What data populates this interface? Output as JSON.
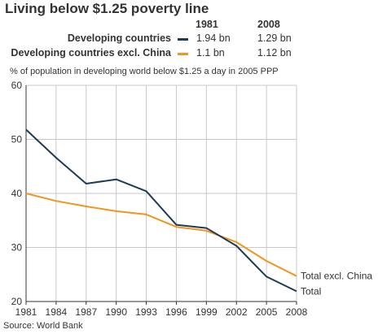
{
  "chart_data": {
    "type": "line",
    "title": "Living below $1.25 poverty line",
    "subtitle": "% of population in developing world below $1.25 a day in 2005 PPP",
    "source": "Source: World Bank",
    "x": [
      1981,
      1984,
      1987,
      1990,
      1993,
      1996,
      1999,
      2002,
      2005,
      2008
    ],
    "x_tick_labels": [
      "1981",
      "1984",
      "1987",
      "1990",
      "1993",
      "1996",
      "1999",
      "2002",
      "2005",
      "2008"
    ],
    "y_ticks": [
      20,
      30,
      40,
      50,
      60
    ],
    "y_tick_labels": [
      "20",
      "30",
      "40",
      "50",
      "60"
    ],
    "ylim": [
      20,
      60
    ],
    "xlim": [
      1981,
      2008
    ],
    "grid": true,
    "series": [
      {
        "name": "Total",
        "legend_name": "Developing countries",
        "color": "#1f3b55",
        "values": [
          51.8,
          46.6,
          41.8,
          42.6,
          40.4,
          34.2,
          33.6,
          30.3,
          24.6,
          21.9
        ],
        "value_1981": "1.94 bn",
        "value_2008": "1.29 bn"
      },
      {
        "name": "Total excl. China",
        "legend_name": "Developing countries excl. China",
        "color": "#f0961e",
        "values": [
          40.0,
          38.6,
          37.6,
          36.7,
          36.1,
          33.8,
          33.1,
          31.0,
          27.5,
          24.7
        ],
        "value_1981": "1.1 bn",
        "value_2008": "1.12 bn"
      }
    ],
    "legend": {
      "col1": "1981",
      "col2": "2008",
      "placement": "top"
    }
  },
  "colors": {
    "grid": "#c8c8c8",
    "axis": "#333333",
    "text": "#333333"
  }
}
